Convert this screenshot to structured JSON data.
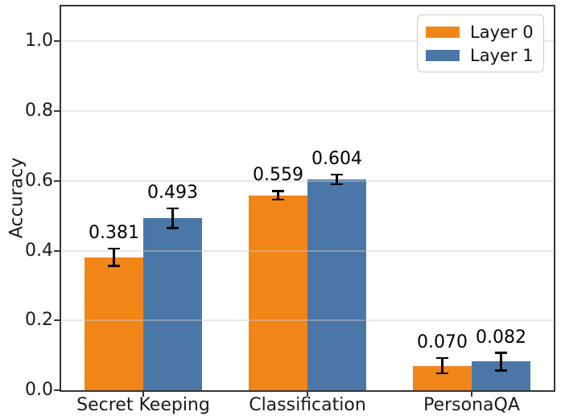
{
  "chart_data": {
    "type": "bar",
    "title": "",
    "ylabel": "Accuracy",
    "xlabel": "",
    "categories": [
      "Secret Keeping",
      "Classification",
      "PersonaQA"
    ],
    "series": [
      {
        "name": "Layer 0",
        "color": "#f28518",
        "values": [
          0.381,
          0.559,
          0.07
        ],
        "errors": [
          0.025,
          0.012,
          0.022
        ],
        "labels": [
          "0.381",
          "0.559",
          "0.070"
        ]
      },
      {
        "name": "Layer 1",
        "color": "#4a77a8",
        "values": [
          0.493,
          0.604,
          0.082
        ],
        "errors": [
          0.028,
          0.014,
          0.025
        ],
        "labels": [
          "0.493",
          "0.604",
          "0.082"
        ]
      }
    ],
    "ylim": [
      0,
      1.1
    ],
    "yticks": [
      "0.0",
      "0.2",
      "0.4",
      "0.6",
      "0.8",
      "1.0"
    ],
    "grid": true,
    "legend_position": "upper right",
    "error_bar_color": "#000000"
  }
}
